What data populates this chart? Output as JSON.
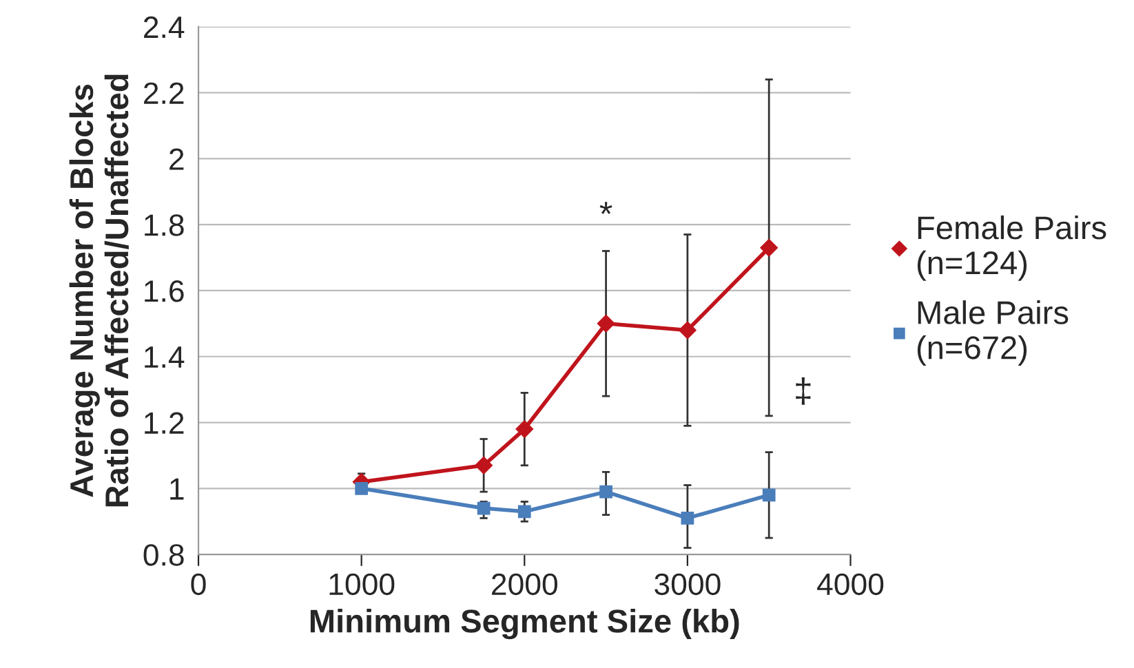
{
  "chart_data": {
    "type": "line",
    "xlabel": "Minimum Segment Size (kb)",
    "ylabel": "Average Number of Blocks\nRatio of Affected/Unaffected",
    "x": [
      1000,
      1750,
      2000,
      2500,
      3000,
      3500
    ],
    "series": [
      {
        "name": "Female Pairs\n(n=124)",
        "color": "#c0141c",
        "marker": "diamond",
        "values": [
          1.02,
          1.07,
          1.18,
          1.5,
          1.48,
          1.73
        ],
        "errors": [
          [
            1.02,
            1.045
          ],
          [
            0.99,
            1.15
          ],
          [
            1.07,
            1.29
          ],
          [
            1.28,
            1.72
          ],
          [
            1.19,
            1.77
          ],
          [
            1.22,
            2.24
          ]
        ]
      },
      {
        "name": "Male Pairs\n(n=672)",
        "color": "#4a7ebb",
        "marker": "square",
        "values": [
          1.0,
          0.94,
          0.93,
          0.99,
          0.91,
          0.98
        ],
        "errors": [
          null,
          [
            0.91,
            0.96
          ],
          [
            0.9,
            0.96
          ],
          [
            0.92,
            1.05
          ],
          [
            0.82,
            1.01
          ],
          [
            0.85,
            1.11
          ]
        ]
      }
    ],
    "annotations": [
      "*",
      "‡"
    ],
    "xlim": [
      0,
      4000
    ],
    "xticks": [
      0,
      1000,
      2000,
      3000,
      4000
    ],
    "ylim": [
      0.8,
      2.4
    ],
    "yticks": [
      0.8,
      1,
      1.2,
      1.4,
      1.6,
      1.8,
      2,
      2.2,
      2.4
    ],
    "grid": "y",
    "legend": "right",
    "line_style": "solid"
  }
}
